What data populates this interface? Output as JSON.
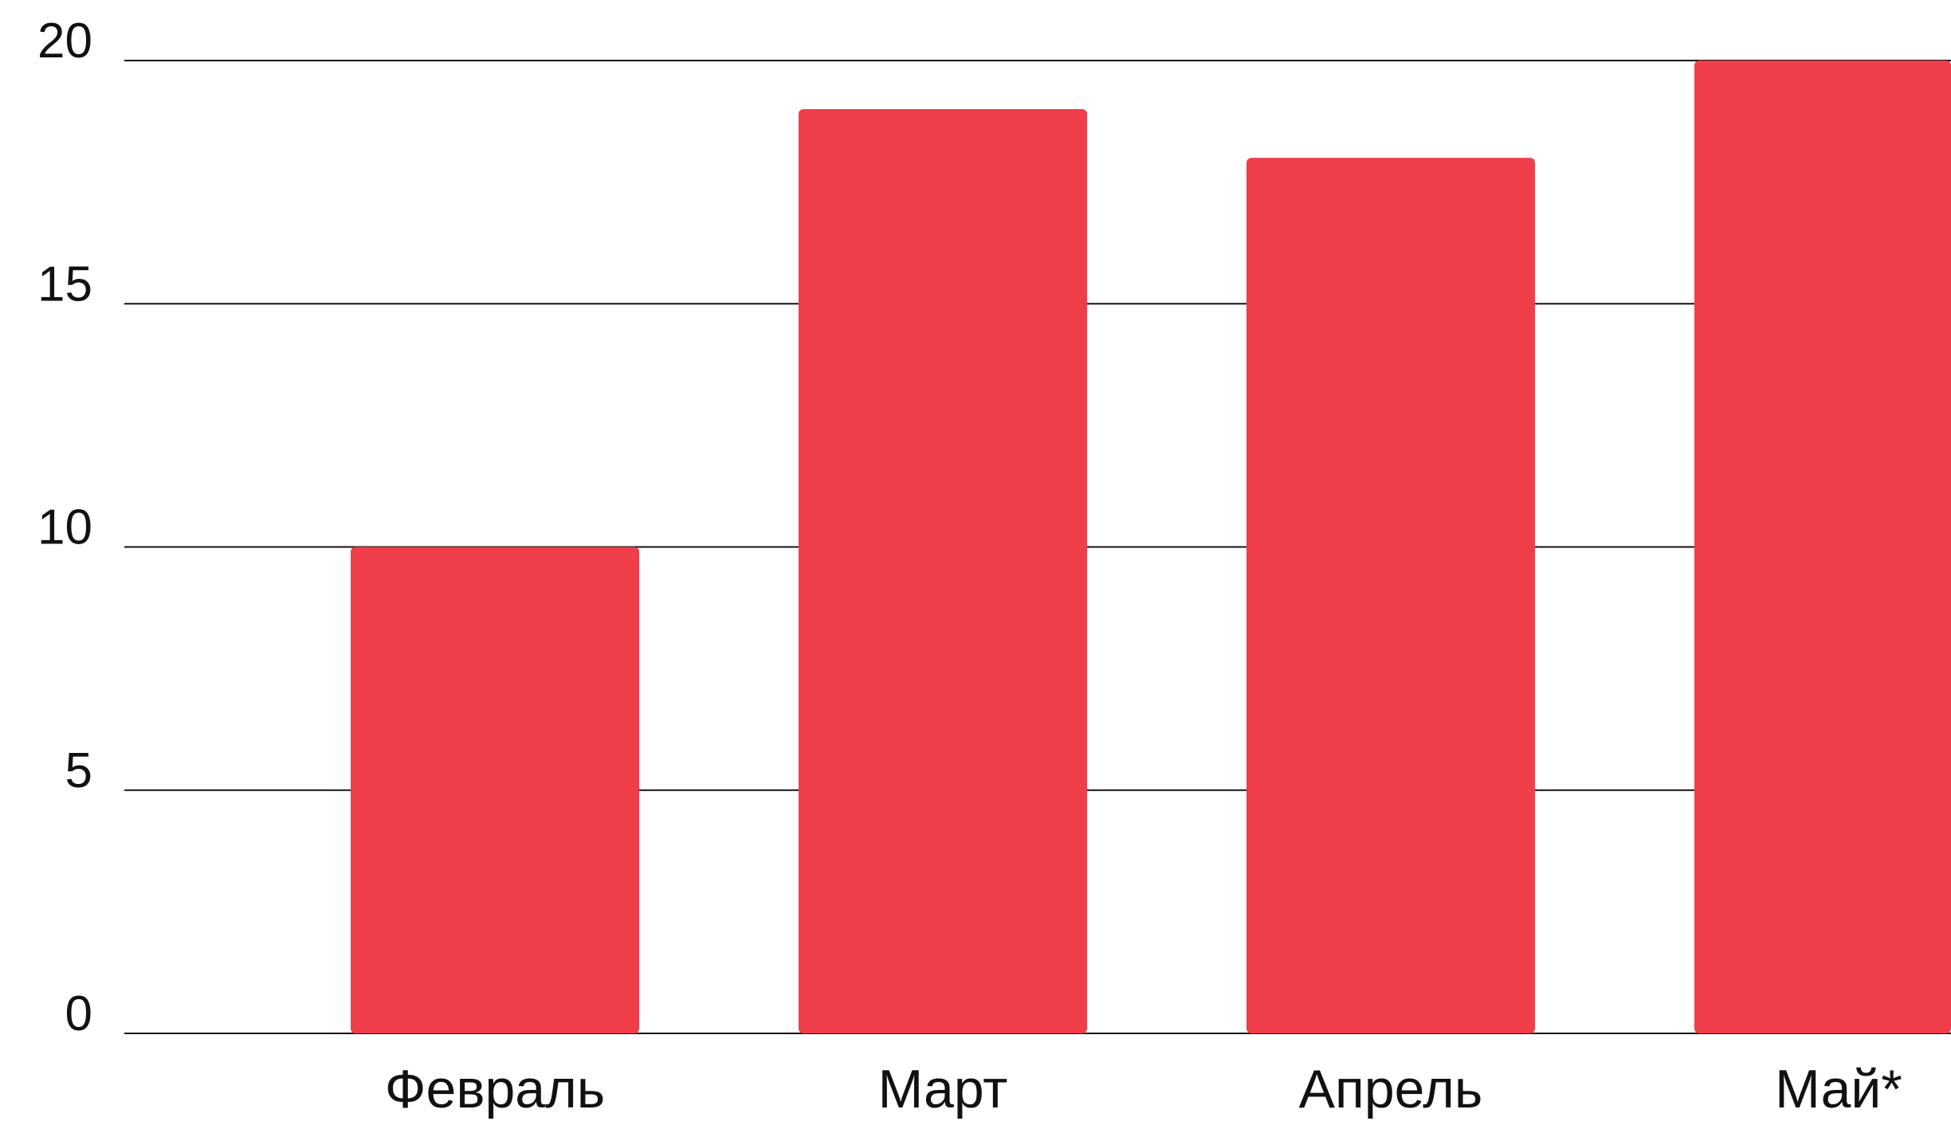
{
  "chart_data": {
    "type": "bar",
    "title": "",
    "xlabel": "",
    "ylabel": "",
    "categories": [
      "Февраль",
      "Март",
      "Апрель",
      "Май*"
    ],
    "values": [
      10,
      19,
      18,
      20
    ],
    "ylim": [
      0,
      20
    ],
    "yticks": [
      0,
      5,
      10,
      15,
      20
    ],
    "ytick_labels": [
      "0",
      "5",
      "10",
      "15",
      "20"
    ],
    "grid": "horizontal",
    "legend": "none",
    "bar_color": "#ef3e4a",
    "grid_color": "#111111"
  }
}
